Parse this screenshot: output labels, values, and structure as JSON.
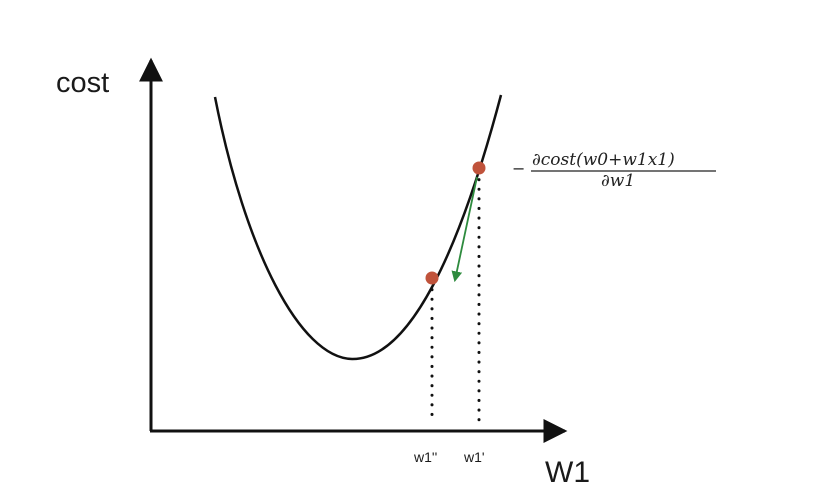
{
  "y_axis_label": "cost",
  "x_axis_label": "W1",
  "ticks": {
    "w1_second": "w1''",
    "w1_first": "w1'"
  },
  "formula": {
    "sign": "−",
    "numerator": "∂cost(w0+w1x1)",
    "denominator": "∂w1"
  },
  "colors": {
    "curve": "#111111",
    "axis": "#111111",
    "point": "#c0533b",
    "arrow": "#2e8b3e",
    "guide": "#111111"
  }
}
